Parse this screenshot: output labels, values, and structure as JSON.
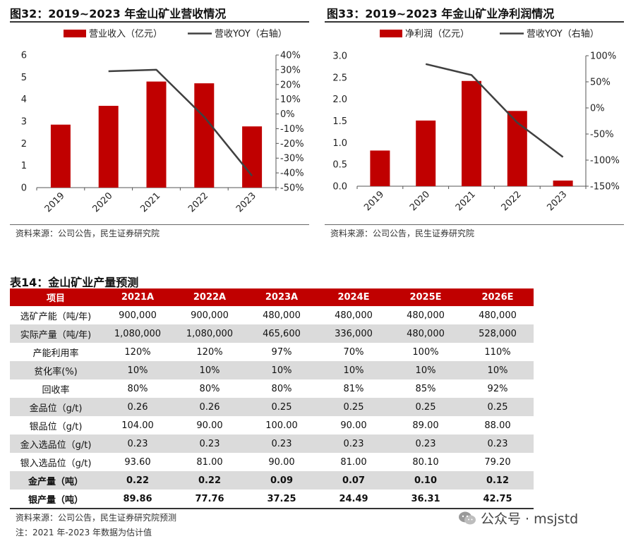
{
  "fig32": {
    "title": "图32：2019~2023 年金山矿业营收情况",
    "source": "资料来源：公司公告，民生证券研究院",
    "legend_bar": "营业收入（亿元）",
    "legend_line": "营收YOY（右轴）",
    "y_left_ticks": [
      "0",
      "1",
      "2",
      "3",
      "4",
      "5",
      "6"
    ],
    "y_right_ticks": [
      "-50%",
      "-40%",
      "-30%",
      "-20%",
      "-10%",
      "0%",
      "10%",
      "20%",
      "30%",
      "40%"
    ]
  },
  "fig33": {
    "title": "图33：2019~2023 年金山矿业净利润情况",
    "source": "资料来源：公司公告，民生证券研究院",
    "legend_bar": "净利润（亿元）",
    "legend_line": "营收YOY（右轴）",
    "y_left_ticks": [
      "0.0",
      "0.5",
      "1.0",
      "1.5",
      "2.0",
      "2.5",
      "3.0"
    ],
    "y_right_ticks": [
      "-150%",
      "-100%",
      "-50%",
      "0%",
      "50%",
      "100%"
    ]
  },
  "chart_data": [
    {
      "type": "bar",
      "title": "图32：2019~2023 年金山矿业营收情况",
      "categories": [
        "2019",
        "2020",
        "2021",
        "2022",
        "2023"
      ],
      "series": [
        {
          "name": "营业收入（亿元）",
          "type": "bar",
          "axis": "left",
          "values": [
            2.85,
            3.7,
            4.8,
            4.72,
            2.77
          ]
        },
        {
          "name": "营收YOY（右轴）",
          "type": "line",
          "axis": "right",
          "values": [
            null,
            0.29,
            0.3,
            -0.02,
            -0.42
          ]
        }
      ],
      "ylim_left": [
        0,
        6
      ],
      "ylim_right": [
        -0.5,
        0.4
      ],
      "legend": "top"
    },
    {
      "type": "bar",
      "title": "图33：2019~2023 年金山矿业净利润情况",
      "categories": [
        "2019",
        "2020",
        "2021",
        "2022",
        "2023"
      ],
      "series": [
        {
          "name": "净利润（亿元）",
          "type": "bar",
          "axis": "left",
          "values": [
            0.82,
            1.51,
            2.42,
            1.73,
            0.13
          ]
        },
        {
          "name": "营收YOY（右轴）",
          "type": "line",
          "axis": "right",
          "values": [
            null,
            0.84,
            0.63,
            -0.28,
            -0.94
          ]
        }
      ],
      "ylim_left": [
        0,
        3
      ],
      "ylim_right": [
        -1.5,
        1.0
      ],
      "legend": "top"
    }
  ],
  "table14": {
    "title": "表14：金山矿业产量预测",
    "headers": [
      "项目",
      "2021A",
      "2022A",
      "2023A",
      "2024E",
      "2025E",
      "2026E"
    ],
    "rows": [
      [
        "选矿产能（吨/年)",
        "900,000",
        "900,000",
        "480,000",
        "480,000",
        "480,000",
        "480,000"
      ],
      [
        "实际产量（吨/年)",
        "1,080,000",
        "1,080,000",
        "465,600",
        "336,000",
        "480,000",
        "528,000"
      ],
      [
        "产能利用率",
        "120%",
        "120%",
        "97%",
        "70%",
        "100%",
        "110%"
      ],
      [
        "贫化率(%)",
        "10%",
        "10%",
        "10%",
        "10%",
        "10%",
        "10%"
      ],
      [
        "回收率",
        "80%",
        "80%",
        "80%",
        "81%",
        "85%",
        "92%"
      ],
      [
        "金品位（g/t)",
        "0.26",
        "0.26",
        "0.25",
        "0.25",
        "0.25",
        "0.25"
      ],
      [
        "银品位（g/t)",
        "104.00",
        "90.00",
        "100.00",
        "90.00",
        "89.00",
        "88.00"
      ],
      [
        "金入选品位（g/t)",
        "0.23",
        "0.23",
        "0.23",
        "0.23",
        "0.23",
        "0.23"
      ],
      [
        "银入选品位（g/t)",
        "93.60",
        "81.00",
        "90.00",
        "81.00",
        "80.10",
        "79.20"
      ],
      [
        "金产量（吨）",
        "0.22",
        "0.22",
        "0.09",
        "0.07",
        "0.10",
        "0.12"
      ],
      [
        "银产量（吨）",
        "89.86",
        "77.76",
        "37.25",
        "24.49",
        "36.31",
        "42.75"
      ]
    ],
    "source": "资料来源：公司公告，民生证券研究院预测",
    "note": "注：2021 年-2023 年数据为估计值"
  },
  "watermark": {
    "text": "公众号 · msjstd",
    "icon": "wechat-icon"
  },
  "colors": {
    "bar": "#c00000",
    "line": "#404040",
    "header": "#c00000",
    "shade": "#dbdbdb"
  }
}
